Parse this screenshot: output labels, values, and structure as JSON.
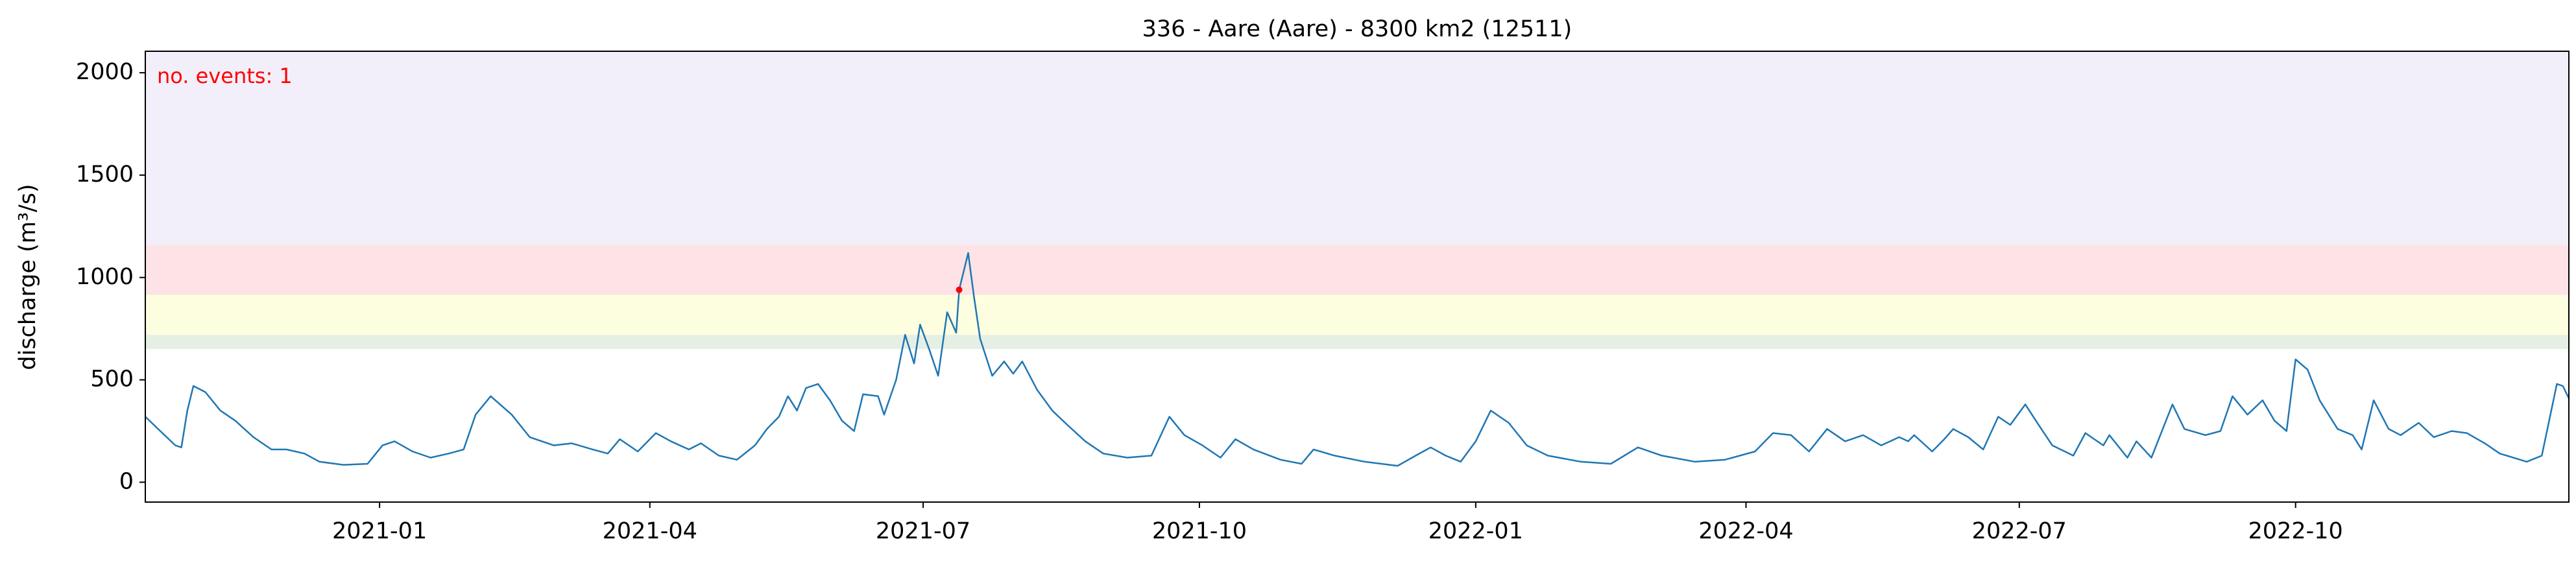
{
  "chart_data": {
    "type": "line",
    "title": "336 - Aare (Aare) - 8300 km2 (12511)",
    "y_label": "discharge (m³/s)",
    "annotation": "no. events: 1",
    "annotation_color": "#ff0000",
    "xlim": [
      "2020-10-15",
      "2022-12-31"
    ],
    "ylim": [
      -97,
      2105
    ],
    "yticks": [
      0,
      500,
      1000,
      1500,
      2000
    ],
    "xticks": [
      {
        "value": "2021-01-01",
        "label": "2021-01"
      },
      {
        "value": "2021-04-01",
        "label": "2021-04"
      },
      {
        "value": "2021-07-01",
        "label": "2021-07"
      },
      {
        "value": "2021-10-01",
        "label": "2021-10"
      },
      {
        "value": "2022-01-01",
        "label": "2022-01"
      },
      {
        "value": "2022-04-01",
        "label": "2022-04"
      },
      {
        "value": "2022-07-01",
        "label": "2022-07"
      },
      {
        "value": "2022-10-01",
        "label": "2022-10"
      }
    ],
    "bands": [
      {
        "from": 650,
        "to": 720,
        "color": "#e6efe4"
      },
      {
        "from": 720,
        "to": 915,
        "color": "#fdfde0"
      },
      {
        "from": 915,
        "to": 1160,
        "color": "#fde3e5"
      },
      {
        "from": 1160,
        "to": 2105,
        "color": "#f2effa"
      }
    ],
    "events": [
      {
        "x": "2021-07-13",
        "value": 940,
        "color": "#ff0000"
      }
    ],
    "x": [
      "2020-10-15",
      "2020-10-20",
      "2020-10-25",
      "2020-10-27",
      "2020-10-29",
      "2020-10-31",
      "2020-11-04",
      "2020-11-09",
      "2020-11-14",
      "2020-11-20",
      "2020-11-26",
      "2020-12-01",
      "2020-12-07",
      "2020-12-12",
      "2020-12-20",
      "2020-12-28",
      "2021-01-02",
      "2021-01-06",
      "2021-01-12",
      "2021-01-18",
      "2021-01-24",
      "2021-01-29",
      "2021-02-02",
      "2021-02-07",
      "2021-02-14",
      "2021-02-20",
      "2021-02-28",
      "2021-03-06",
      "2021-03-13",
      "2021-03-18",
      "2021-03-22",
      "2021-03-28",
      "2021-04-03",
      "2021-04-08",
      "2021-04-14",
      "2021-04-18",
      "2021-04-24",
      "2021-04-30",
      "2021-05-06",
      "2021-05-10",
      "2021-05-14",
      "2021-05-17",
      "2021-05-20",
      "2021-05-23",
      "2021-05-27",
      "2021-05-31",
      "2021-06-04",
      "2021-06-08",
      "2021-06-11",
      "2021-06-16",
      "2021-06-18",
      "2021-06-22",
      "2021-06-25",
      "2021-06-28",
      "2021-06-30",
      "2021-07-03",
      "2021-07-06",
      "2021-07-09",
      "2021-07-12",
      "2021-07-13",
      "2021-07-16",
      "2021-07-18",
      "2021-07-20",
      "2021-07-24",
      "2021-07-28",
      "2021-07-31",
      "2021-08-03",
      "2021-08-08",
      "2021-08-13",
      "2021-08-18",
      "2021-08-24",
      "2021-08-30",
      "2021-09-07",
      "2021-09-15",
      "2021-09-21",
      "2021-09-26",
      "2021-10-02",
      "2021-10-08",
      "2021-10-13",
      "2021-10-19",
      "2021-10-28",
      "2021-11-04",
      "2021-11-08",
      "2021-11-15",
      "2021-11-25",
      "2021-12-06",
      "2021-12-12",
      "2021-12-17",
      "2021-12-22",
      "2021-12-27",
      "2022-01-01",
      "2022-01-06",
      "2022-01-12",
      "2022-01-18",
      "2022-01-25",
      "2022-02-05",
      "2022-02-15",
      "2022-02-24",
      "2022-03-04",
      "2022-03-15",
      "2022-03-25",
      "2022-04-04",
      "2022-04-10",
      "2022-04-16",
      "2022-04-22",
      "2022-04-28",
      "2022-05-04",
      "2022-05-10",
      "2022-05-16",
      "2022-05-22",
      "2022-05-25",
      "2022-05-27",
      "2022-06-02",
      "2022-06-06",
      "2022-06-09",
      "2022-06-14",
      "2022-06-19",
      "2022-06-24",
      "2022-06-28",
      "2022-07-03",
      "2022-07-07",
      "2022-07-12",
      "2022-07-19",
      "2022-07-23",
      "2022-07-29",
      "2022-07-31",
      "2022-08-06",
      "2022-08-09",
      "2022-08-14",
      "2022-08-21",
      "2022-08-25",
      "2022-09-01",
      "2022-09-06",
      "2022-09-10",
      "2022-09-15",
      "2022-09-20",
      "2022-09-24",
      "2022-09-28",
      "2022-10-01",
      "2022-10-05",
      "2022-10-09",
      "2022-10-15",
      "2022-10-20",
      "2022-10-23",
      "2022-10-27",
      "2022-11-01",
      "2022-11-05",
      "2022-11-11",
      "2022-11-16",
      "2022-11-22",
      "2022-11-27",
      "2022-12-03",
      "2022-12-08",
      "2022-12-17",
      "2022-12-22",
      "2022-12-27",
      "2022-12-29",
      "2022-12-31"
    ],
    "series": [
      {
        "name": "discharge",
        "color": "#1f77b4",
        "values": [
          320,
          250,
          180,
          170,
          350,
          470,
          440,
          350,
          300,
          220,
          160,
          160,
          140,
          100,
          85,
          90,
          180,
          200,
          150,
          120,
          140,
          160,
          330,
          420,
          330,
          220,
          180,
          190,
          160,
          140,
          210,
          150,
          240,
          200,
          160,
          190,
          130,
          110,
          180,
          260,
          320,
          420,
          350,
          460,
          480,
          400,
          300,
          250,
          430,
          420,
          330,
          500,
          720,
          580,
          770,
          650,
          520,
          830,
          730,
          940,
          1120,
          900,
          700,
          520,
          590,
          530,
          590,
          450,
          350,
          280,
          200,
          140,
          120,
          130,
          320,
          230,
          180,
          120,
          210,
          160,
          110,
          90,
          160,
          130,
          100,
          80,
          130,
          170,
          130,
          100,
          200,
          350,
          290,
          180,
          130,
          100,
          90,
          170,
          130,
          100,
          110,
          150,
          240,
          230,
          150,
          260,
          200,
          230,
          180,
          220,
          200,
          230,
          150,
          210,
          260,
          220,
          160,
          320,
          280,
          380,
          290,
          180,
          130,
          240,
          180,
          230,
          120,
          200,
          120,
          380,
          260,
          230,
          250,
          420,
          330,
          400,
          300,
          250,
          600,
          550,
          400,
          260,
          230,
          160,
          400,
          260,
          230,
          290,
          220,
          250,
          240,
          190,
          140,
          100,
          130,
          480,
          470,
          410
        ]
      }
    ]
  }
}
